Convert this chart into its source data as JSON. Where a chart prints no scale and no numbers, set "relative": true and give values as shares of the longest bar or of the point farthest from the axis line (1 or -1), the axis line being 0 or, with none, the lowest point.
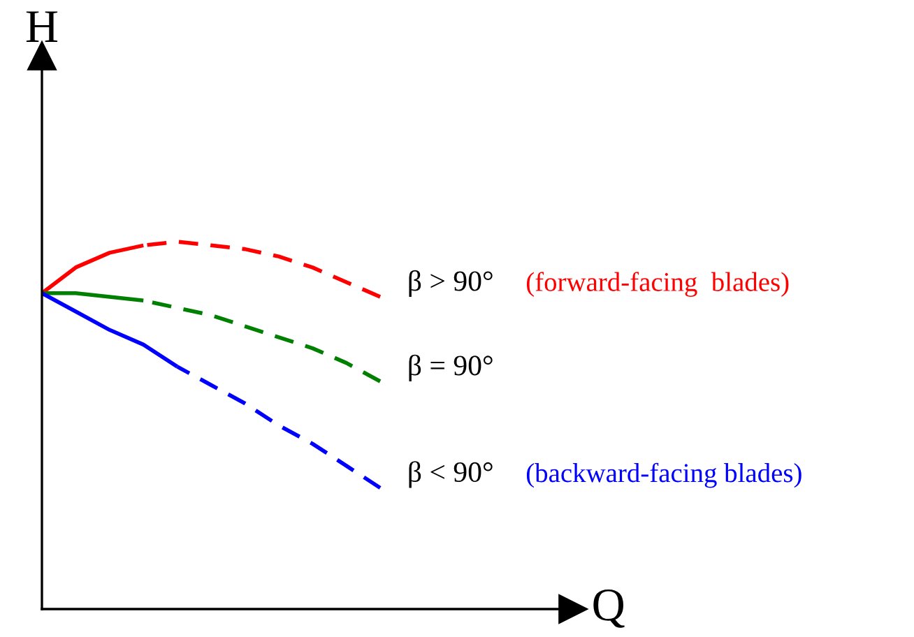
{
  "chart_data": {
    "type": "line",
    "relative": true,
    "xlabel": "Q",
    "ylabel": "H",
    "categories": [
      null,
      null,
      null,
      null,
      null,
      null,
      null,
      null,
      null,
      null,
      null
    ],
    "series": [
      {
        "color": "#ff0000",
        "line_style": "solid",
        "values": [
          0.86,
          0.93,
          0.97,
          0.99,
          null,
          null,
          null,
          null,
          null,
          null,
          null
        ]
      },
      {
        "name": "β > 90°",
        "color": "#ff0000",
        "line_style": "dashed",
        "values": [
          null,
          null,
          null,
          0.99,
          1.0,
          0.99,
          0.98,
          0.96,
          0.93,
          0.89,
          0.85
        ]
      },
      {
        "color": "#008000",
        "line_style": "solid",
        "values": [
          0.86,
          0.86,
          0.85,
          0.84,
          null,
          null,
          null,
          null,
          null,
          null,
          null
        ]
      },
      {
        "name": "β = 90°",
        "color": "#008000",
        "line_style": "dashed",
        "values": [
          null,
          null,
          null,
          0.84,
          0.82,
          0.8,
          0.77,
          0.74,
          0.71,
          0.67,
          0.62
        ]
      },
      {
        "color": "#0000ff",
        "line_style": "solid",
        "values": [
          0.86,
          0.81,
          0.76,
          0.72,
          0.66,
          null,
          null,
          null,
          null,
          null,
          null
        ]
      },
      {
        "name": "β < 90°",
        "color": "#0000ff",
        "line_style": "dashed",
        "values": [
          null,
          null,
          null,
          null,
          0.66,
          0.61,
          0.56,
          0.5,
          0.45,
          0.39,
          0.33
        ]
      }
    ],
    "annotations": [
      "(forward-facing  blades)",
      "(backward-facing blades)"
    ],
    "legend": false
  }
}
